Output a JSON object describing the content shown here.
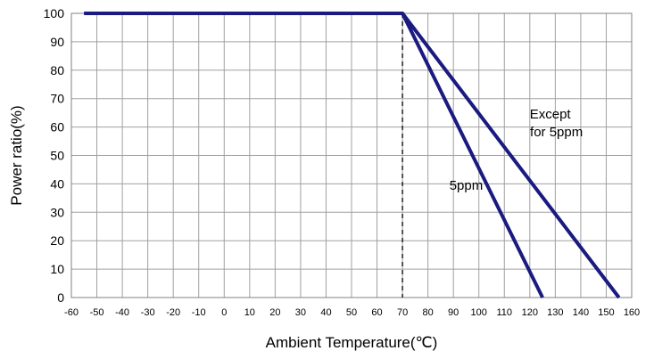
{
  "chart_data": {
    "type": "line",
    "xlabel": "Ambient Temperature(℃)",
    "ylabel": "Power ratio(%)",
    "xlim": [
      -60,
      160
    ],
    "ylim": [
      0,
      100
    ],
    "x_ticks": [
      -60,
      -50,
      -40,
      -30,
      -20,
      -10,
      0,
      10,
      20,
      30,
      40,
      50,
      60,
      70,
      80,
      90,
      100,
      110,
      120,
      130,
      140,
      150,
      160
    ],
    "y_ticks": [
      0,
      10,
      20,
      30,
      40,
      50,
      60,
      70,
      80,
      90,
      100
    ],
    "grid": true,
    "series": [
      {
        "name": "5ppm",
        "x": [
          -55,
          70,
          125
        ],
        "y": [
          100,
          100,
          0
        ]
      },
      {
        "name": "Except for 5ppm",
        "x": [
          -55,
          70,
          155
        ],
        "y": [
          100,
          100,
          0
        ]
      }
    ],
    "reference_lines": [
      {
        "orientation": "vertical",
        "x": 70,
        "style": "dashed"
      }
    ],
    "annotations": [
      {
        "text_lines": [
          "Except",
          "for 5ppm"
        ],
        "x": 128,
        "y": 63
      },
      {
        "text_lines": [
          "5ppm"
        ],
        "x": 95,
        "y": 38
      }
    ],
    "line_color": "#1a1a80",
    "grid_color": "#a0a0a0"
  }
}
